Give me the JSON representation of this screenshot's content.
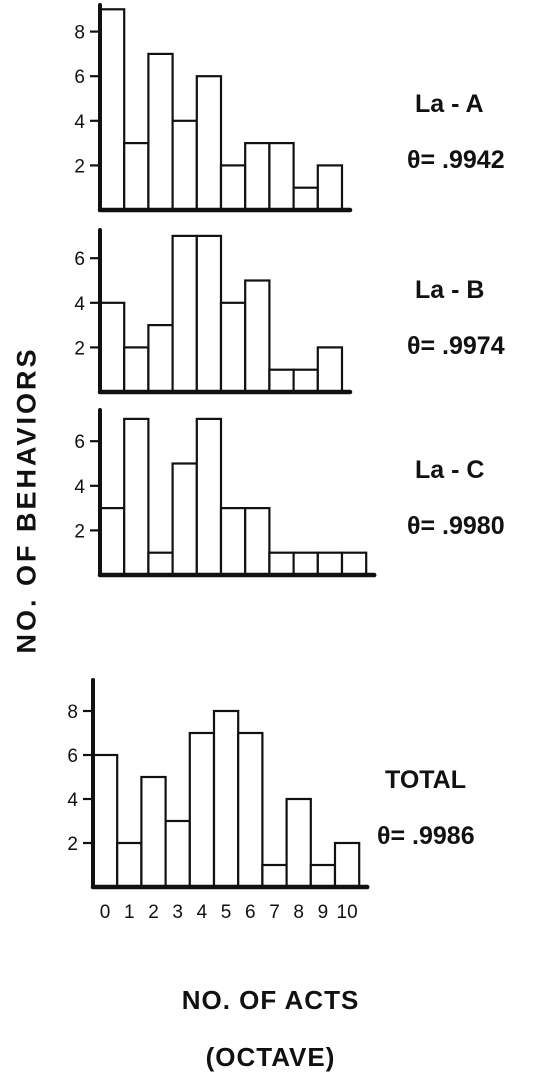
{
  "chart_data": {
    "type": "bar",
    "ylabel": "NO. OF BEHAVIORS",
    "xlabel": "NO. OF ACTS",
    "xlabel_sub": "(OCTAVE)",
    "x_tick_labels": [
      "0",
      "1",
      "2",
      "3",
      "4",
      "5",
      "6",
      "7",
      "8",
      "9",
      "10"
    ],
    "panels": [
      {
        "label": "La - A",
        "theta": "θ= .9942",
        "categories": [
          0,
          1,
          2,
          3,
          4,
          5,
          6,
          7,
          8,
          9
        ],
        "values": [
          9,
          3,
          7,
          4,
          6,
          2,
          3,
          3,
          1,
          2
        ],
        "y_ticks": [
          2,
          4,
          6,
          8
        ],
        "ylim": [
          0,
          9
        ]
      },
      {
        "label": "La - B",
        "theta": "θ= .9974",
        "categories": [
          0,
          1,
          2,
          3,
          4,
          5,
          6,
          7,
          8,
          9
        ],
        "values": [
          4,
          2,
          3,
          7,
          7,
          4,
          5,
          1,
          1,
          2
        ],
        "y_ticks": [
          2,
          4,
          6
        ],
        "ylim": [
          0,
          7
        ]
      },
      {
        "label": "La - C",
        "theta": "θ= .9980",
        "categories": [
          0,
          1,
          2,
          3,
          4,
          5,
          6,
          7,
          8,
          9,
          10
        ],
        "values": [
          3,
          7,
          1,
          5,
          7,
          3,
          3,
          1,
          1,
          1,
          1
        ],
        "y_ticks": [
          2,
          4,
          6
        ],
        "ylim": [
          0,
          7
        ]
      },
      {
        "label": "TOTAL",
        "theta": "θ= .9986",
        "categories": [
          0,
          1,
          2,
          3,
          4,
          5,
          6,
          7,
          8,
          9,
          10
        ],
        "values": [
          6,
          2,
          5,
          3,
          7,
          8,
          7,
          1,
          4,
          1,
          2
        ],
        "y_ticks": [
          2,
          4,
          6,
          8
        ],
        "ylim": [
          0,
          9
        ]
      }
    ]
  }
}
